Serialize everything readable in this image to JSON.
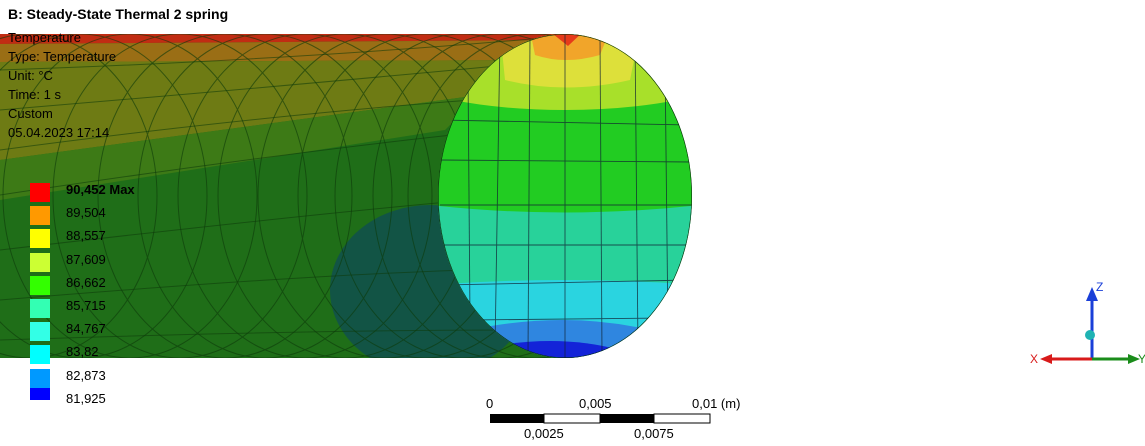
{
  "header": {
    "title": "B: Steady-State Thermal 2 spring"
  },
  "info": {
    "result_name": "Temperature",
    "type": "Type: Temperature",
    "unit": "Unit: °C",
    "time": "Time: 1 s",
    "mode": "Custom",
    "timestamp": "05.04.2023 17:14"
  },
  "legend": {
    "items": [
      {
        "label": "90,452 Max",
        "color": "#ff0000"
      },
      {
        "label": "89,504",
        "color": "#ff9900"
      },
      {
        "label": "88,557",
        "color": "#ffff00"
      },
      {
        "label": "87,609",
        "color": "#ccff33"
      },
      {
        "label": "86,662",
        "color": "#33ff00"
      },
      {
        "label": "85,715",
        "color": "#33ffb3"
      },
      {
        "label": "84,767",
        "color": "#33ffe6"
      },
      {
        "label": "83,82",
        "color": "#00ffff"
      },
      {
        "label": "82,873",
        "color": "#0099ff"
      },
      {
        "label": "81,925",
        "color": "#0000ff"
      }
    ]
  },
  "scale_bar": {
    "top_labels": [
      "0",
      "0,005",
      "0,01 (m)"
    ],
    "bottom_labels": [
      "0,0025",
      "0,0075"
    ]
  },
  "triad": {
    "x_label": "X",
    "y_label": "Y",
    "z_label": "Z"
  },
  "colors": {
    "cylinder_body": "#1f6e18",
    "end_face_primary": "#1fd01f",
    "axis_z": "#1a3fd8",
    "axis_x": "#d81a1a",
    "axis_y": "#1a8c1a"
  }
}
